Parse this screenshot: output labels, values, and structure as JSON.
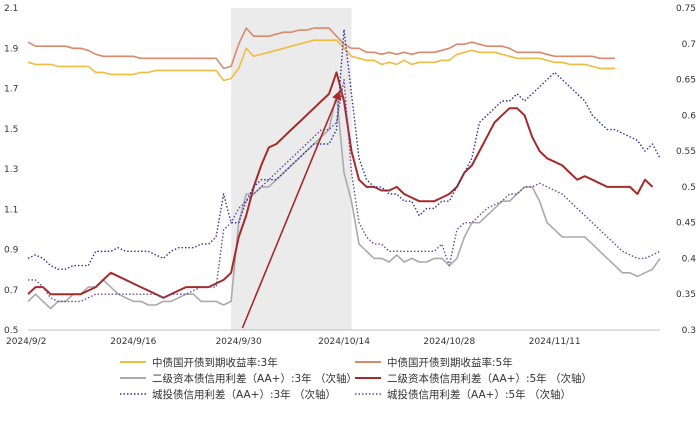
{
  "chart_data": {
    "type": "line",
    "x_labels": [
      "2024/9/2",
      "2024/9/16",
      "2024/9/30",
      "2024/10/14",
      "2024/10/28",
      "2024/11/11"
    ],
    "y_left": {
      "ylim": [
        0.5,
        2.1
      ],
      "ticks": [
        "0.5",
        "0.7",
        "0.9",
        "1.1",
        "1.3",
        "1.5",
        "1.7",
        "1.9",
        "2.1"
      ]
    },
    "y_right": {
      "ylim": [
        0.3,
        0.75
      ],
      "ticks": [
        "0.3",
        "0.35",
        "0.4",
        "0.45",
        "0.5",
        "0.55",
        "0.6",
        "0.65",
        "0.7",
        "0.75"
      ]
    },
    "highlight": {
      "x_start": 27,
      "x_end": 43
    },
    "arrow": {
      "from": [
        28.5,
        0.3
      ],
      "to": [
        41.5,
        0.635
      ]
    },
    "series": [
      {
        "name": "中债国开债到期收益率:3年",
        "axis": "left",
        "color": "#f0bc42",
        "dash": "solid",
        "values": [
          1.83,
          1.82,
          1.82,
          1.82,
          1.81,
          1.81,
          1.81,
          1.81,
          1.81,
          1.78,
          1.78,
          1.77,
          1.77,
          1.77,
          1.77,
          1.78,
          1.78,
          1.79,
          1.79,
          1.79,
          1.79,
          1.79,
          1.79,
          1.79,
          1.79,
          1.79,
          1.74,
          1.75,
          1.8,
          1.9,
          1.86,
          1.87,
          1.88,
          1.89,
          1.9,
          1.91,
          1.92,
          1.93,
          1.94,
          1.94,
          1.94,
          1.94,
          1.9,
          1.86,
          1.85,
          1.84,
          1.84,
          1.82,
          1.83,
          1.82,
          1.84,
          1.82,
          1.83,
          1.83,
          1.83,
          1.84,
          1.84,
          1.87,
          1.88,
          1.89,
          1.88,
          1.88,
          1.88,
          1.87,
          1.86,
          1.85,
          1.85,
          1.85,
          1.85,
          1.84,
          1.83,
          1.83,
          1.82,
          1.82,
          1.82,
          1.81,
          1.8,
          1.8,
          1.8
        ]
      },
      {
        "name": "中债国开债到期收益率:5年",
        "axis": "left",
        "color": "#d98a6c",
        "dash": "solid",
        "values": [
          1.93,
          1.91,
          1.91,
          1.91,
          1.91,
          1.91,
          1.9,
          1.9,
          1.89,
          1.87,
          1.86,
          1.86,
          1.86,
          1.86,
          1.86,
          1.85,
          1.85,
          1.85,
          1.85,
          1.85,
          1.85,
          1.85,
          1.85,
          1.85,
          1.85,
          1.85,
          1.8,
          1.81,
          1.92,
          2.0,
          1.96,
          1.96,
          1.96,
          1.97,
          1.98,
          1.98,
          1.99,
          1.99,
          2.0,
          2.0,
          2.0,
          1.96,
          1.92,
          1.9,
          1.9,
          1.88,
          1.88,
          1.87,
          1.88,
          1.87,
          1.88,
          1.87,
          1.88,
          1.88,
          1.88,
          1.89,
          1.9,
          1.92,
          1.92,
          1.93,
          1.92,
          1.91,
          1.91,
          1.91,
          1.9,
          1.88,
          1.88,
          1.88,
          1.88,
          1.87,
          1.86,
          1.86,
          1.86,
          1.86,
          1.86,
          1.86,
          1.85,
          1.85,
          1.85
        ]
      },
      {
        "name": "二级资本债信用利差（AA+）:3年 （次轴）",
        "axis": "right",
        "color": "#aaaaaa",
        "dash": "solid",
        "values": [
          0.34,
          0.35,
          0.34,
          0.33,
          0.34,
          0.34,
          0.35,
          0.35,
          0.36,
          0.36,
          0.37,
          0.36,
          0.35,
          0.345,
          0.34,
          0.34,
          0.335,
          0.335,
          0.34,
          0.34,
          0.345,
          0.35,
          0.35,
          0.34,
          0.34,
          0.34,
          0.335,
          0.34,
          0.45,
          0.49,
          0.49,
          0.5,
          0.5,
          0.51,
          0.52,
          0.53,
          0.54,
          0.55,
          0.56,
          0.57,
          0.58,
          0.63,
          0.52,
          0.48,
          0.42,
          0.41,
          0.4,
          0.4,
          0.395,
          0.405,
          0.395,
          0.4,
          0.395,
          0.395,
          0.4,
          0.4,
          0.39,
          0.4,
          0.43,
          0.45,
          0.45,
          0.46,
          0.47,
          0.48,
          0.48,
          0.49,
          0.5,
          0.5,
          0.48,
          0.45,
          0.44,
          0.43,
          0.43,
          0.43,
          0.43,
          0.42,
          0.41,
          0.4,
          0.39,
          0.38,
          0.38,
          0.375,
          0.38,
          0.385,
          0.4
        ]
      },
      {
        "name": "二级资本债信用利差（AA+）:5年 （次轴）",
        "axis": "right",
        "color": "#a52a2a",
        "dash": "solid",
        "values": [
          0.35,
          0.36,
          0.36,
          0.35,
          0.35,
          0.35,
          0.35,
          0.35,
          0.355,
          0.36,
          0.37,
          0.38,
          0.375,
          0.37,
          0.365,
          0.36,
          0.355,
          0.35,
          0.345,
          0.35,
          0.355,
          0.36,
          0.36,
          0.36,
          0.36,
          0.365,
          0.37,
          0.38,
          0.43,
          0.46,
          0.5,
          0.53,
          0.555,
          0.56,
          0.57,
          0.58,
          0.59,
          0.6,
          0.61,
          0.62,
          0.63,
          0.66,
          0.62,
          0.55,
          0.51,
          0.5,
          0.5,
          0.495,
          0.495,
          0.5,
          0.49,
          0.485,
          0.48,
          0.48,
          0.48,
          0.485,
          0.49,
          0.5,
          0.52,
          0.53,
          0.55,
          0.57,
          0.59,
          0.6,
          0.61,
          0.61,
          0.6,
          0.57,
          0.55,
          0.54,
          0.535,
          0.53,
          0.52,
          0.51,
          0.515,
          0.51,
          0.505,
          0.5,
          0.5,
          0.5,
          0.5,
          0.49,
          0.51,
          0.5
        ]
      },
      {
        "name": "城投债信用利差（AA+）:3年 （次轴）",
        "axis": "right",
        "color": "#33339a",
        "dash": "dotted",
        "values": [
          0.4,
          0.405,
          0.4,
          0.39,
          0.385,
          0.385,
          0.39,
          0.39,
          0.39,
          0.41,
          0.41,
          0.41,
          0.415,
          0.41,
          0.41,
          0.41,
          0.41,
          0.405,
          0.4,
          0.41,
          0.415,
          0.415,
          0.415,
          0.42,
          0.42,
          0.43,
          0.49,
          0.45,
          0.45,
          0.48,
          0.5,
          0.51,
          0.51,
          0.51,
          0.52,
          0.53,
          0.54,
          0.55,
          0.56,
          0.56,
          0.56,
          0.58,
          0.72,
          0.63,
          0.54,
          0.51,
          0.5,
          0.5,
          0.49,
          0.49,
          0.48,
          0.48,
          0.46,
          0.47,
          0.47,
          0.48,
          0.48,
          0.5,
          0.52,
          0.54,
          0.59,
          0.6,
          0.61,
          0.62,
          0.62,
          0.63,
          0.62,
          0.63,
          0.64,
          0.65,
          0.66,
          0.65,
          0.64,
          0.63,
          0.62,
          0.6,
          0.59,
          0.58,
          0.58,
          0.575,
          0.57,
          0.565,
          0.55,
          0.56,
          0.54
        ]
      },
      {
        "name": "城投债信用利差（AA+）:5年 （次轴）",
        "axis": "right",
        "color": "#6a4c93",
        "dash": "dotted",
        "values": [
          0.37,
          0.37,
          0.36,
          0.345,
          0.34,
          0.34,
          0.34,
          0.34,
          0.345,
          0.35,
          0.35,
          0.35,
          0.35,
          0.35,
          0.35,
          0.35,
          0.35,
          0.35,
          0.345,
          0.35,
          0.35,
          0.35,
          0.355,
          0.36,
          0.36,
          0.36,
          0.44,
          0.45,
          0.47,
          0.48,
          0.49,
          0.5,
          0.51,
          0.52,
          0.53,
          0.54,
          0.55,
          0.56,
          0.57,
          0.58,
          0.58,
          0.59,
          0.65,
          0.52,
          0.45,
          0.43,
          0.42,
          0.42,
          0.41,
          0.41,
          0.41,
          0.41,
          0.41,
          0.41,
          0.41,
          0.42,
          0.39,
          0.44,
          0.45,
          0.45,
          0.46,
          0.47,
          0.475,
          0.48,
          0.49,
          0.49,
          0.5,
          0.5,
          0.505,
          0.5,
          0.495,
          0.49,
          0.48,
          0.47,
          0.46,
          0.45,
          0.44,
          0.43,
          0.42,
          0.41,
          0.405,
          0.4,
          0.4,
          0.405,
          0.41
        ]
      }
    ]
  }
}
